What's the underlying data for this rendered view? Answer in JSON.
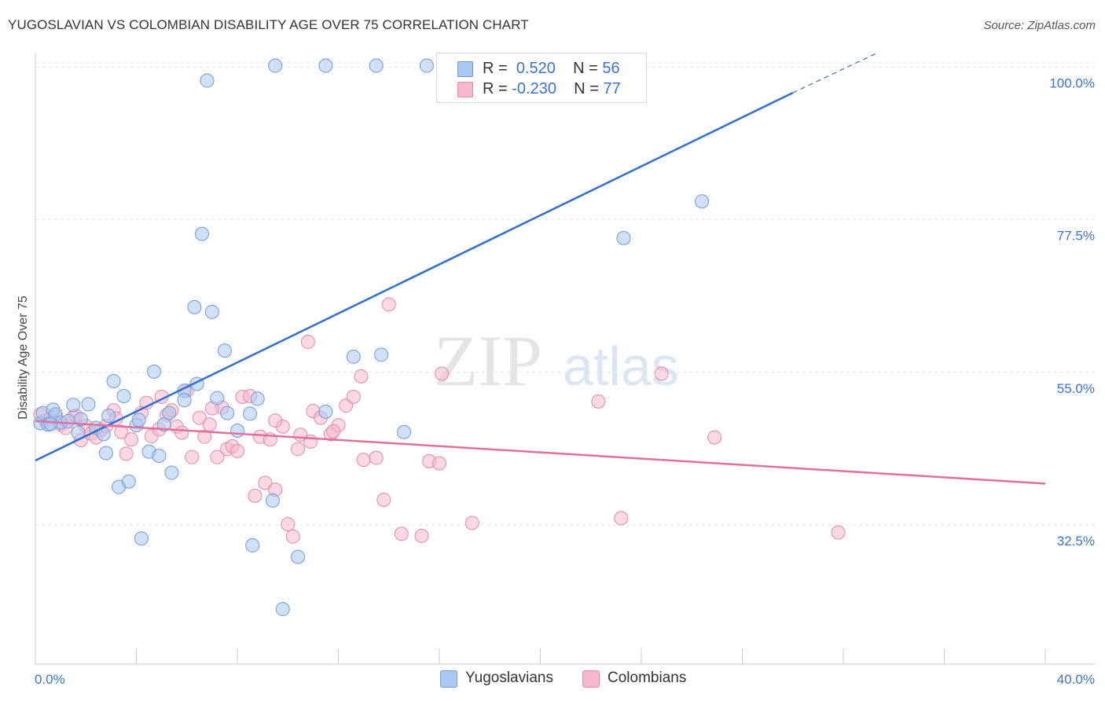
{
  "title": "YUGOSLAVIAN VS COLOMBIAN DISABILITY AGE OVER 75 CORRELATION CHART",
  "source": "Source: ZipAtlas.com",
  "watermark": {
    "zip": "ZIP",
    "atlas": "atlas"
  },
  "legend": {
    "rows": [
      {
        "r_label": "R =",
        "r_value": "0.520",
        "n_label": "N =",
        "n_value": "56",
        "color": "#a9c8f0"
      },
      {
        "r_label": "R =",
        "r_value": "-0.230",
        "n_label": "N =",
        "n_value": "77",
        "color": "#f7b8cc"
      }
    ]
  },
  "chart_data": {
    "type": "scatter",
    "title": "YUGOSLAVIAN VS COLOMBIAN DISABILITY AGE OVER 75 CORRELATION CHART",
    "xlabel": "",
    "ylabel": "Disability Age Over 75",
    "xlim": [
      0,
      40
    ],
    "ylim": [
      12,
      102
    ],
    "x_tick_labels": [
      "0.0%",
      "40.0%"
    ],
    "y_ticks": [
      32.5,
      55.0,
      77.5,
      100.0
    ],
    "y_tick_labels": [
      "32.5%",
      "55.0%",
      "77.5%",
      "100.0%"
    ],
    "grid": true,
    "legend_position": "bottom-center",
    "series": [
      {
        "name": "Yugoslavians",
        "color": "#a9c8f0",
        "stroke": "#6f9ad8",
        "trend": {
          "x": [
            0,
            30
          ],
          "y": [
            42.0,
            96.2
          ],
          "color": "#2f6fcf",
          "dashed_extension_to": [
            33.3,
            102
          ]
        },
        "points": [
          [
            0.2,
            47.5
          ],
          [
            0.3,
            49.0
          ],
          [
            0.5,
            47.3
          ],
          [
            0.7,
            49.5
          ],
          [
            0.8,
            48.8
          ],
          [
            1.0,
            47.6
          ],
          [
            1.3,
            47.8
          ],
          [
            1.5,
            50.2
          ],
          [
            1.7,
            46.1
          ],
          [
            1.8,
            48.1
          ],
          [
            2.1,
            50.3
          ],
          [
            2.4,
            46.8
          ],
          [
            2.7,
            45.9
          ],
          [
            2.8,
            43.1
          ],
          [
            2.9,
            48.6
          ],
          [
            3.1,
            53.7
          ],
          [
            3.3,
            38.1
          ],
          [
            3.5,
            51.5
          ],
          [
            3.7,
            38.9
          ],
          [
            4.0,
            47.2
          ],
          [
            4.1,
            48.0
          ],
          [
            4.2,
            30.5
          ],
          [
            4.5,
            43.3
          ],
          [
            4.7,
            55.1
          ],
          [
            4.9,
            42.7
          ],
          [
            5.1,
            47.3
          ],
          [
            5.3,
            49.0
          ],
          [
            5.4,
            40.2
          ],
          [
            5.9,
            52.3
          ],
          [
            5.9,
            50.9
          ],
          [
            6.3,
            64.6
          ],
          [
            6.4,
            53.3
          ],
          [
            6.6,
            75.4
          ],
          [
            6.8,
            98.0
          ],
          [
            7.0,
            63.9
          ],
          [
            7.2,
            51.2
          ],
          [
            7.5,
            58.2
          ],
          [
            7.6,
            49.0
          ],
          [
            8.0,
            46.4
          ],
          [
            8.5,
            48.9
          ],
          [
            8.6,
            29.5
          ],
          [
            8.8,
            51.1
          ],
          [
            9.4,
            36.1
          ],
          [
            9.5,
            100.2
          ],
          [
            9.8,
            20.1
          ],
          [
            10.4,
            27.8
          ],
          [
            11.5,
            49.2
          ],
          [
            11.5,
            100.2
          ],
          [
            12.6,
            57.3
          ],
          [
            13.5,
            100.2
          ],
          [
            13.7,
            57.6
          ],
          [
            14.6,
            46.2
          ],
          [
            15.5,
            100.2
          ],
          [
            23.3,
            74.8
          ],
          [
            26.4,
            80.2
          ],
          [
            0.6,
            47.4
          ]
        ]
      },
      {
        "name": "Colombians",
        "color": "#f7b8cc",
        "stroke": "#e58aa8",
        "trend": {
          "x": [
            0,
            40
          ],
          "y": [
            47.8,
            38.6
          ],
          "color": "#e0709a"
        },
        "points": [
          [
            0.2,
            48.8
          ],
          [
            0.4,
            47.9
          ],
          [
            0.6,
            48.3
          ],
          [
            0.8,
            48.4
          ],
          [
            1.0,
            47.3
          ],
          [
            1.2,
            46.8
          ],
          [
            1.5,
            48.4
          ],
          [
            1.6,
            48.6
          ],
          [
            1.8,
            45.0
          ],
          [
            2.0,
            47.1
          ],
          [
            2.2,
            46.0
          ],
          [
            2.4,
            45.4
          ],
          [
            2.6,
            46.5
          ],
          [
            2.8,
            47.1
          ],
          [
            3.1,
            49.4
          ],
          [
            3.2,
            48.2
          ],
          [
            3.4,
            46.2
          ],
          [
            3.6,
            43.0
          ],
          [
            3.8,
            45.1
          ],
          [
            4.2,
            49.0
          ],
          [
            4.4,
            50.5
          ],
          [
            4.6,
            45.6
          ],
          [
            5.0,
            51.4
          ],
          [
            5.2,
            48.7
          ],
          [
            5.4,
            49.4
          ],
          [
            5.6,
            47.0
          ],
          [
            5.8,
            46.1
          ],
          [
            6.0,
            52.3
          ],
          [
            6.2,
            42.5
          ],
          [
            6.5,
            48.3
          ],
          [
            6.7,
            45.5
          ],
          [
            6.9,
            47.3
          ],
          [
            7.2,
            42.5
          ],
          [
            7.4,
            49.8
          ],
          [
            7.6,
            43.7
          ],
          [
            7.8,
            44.1
          ],
          [
            8.0,
            43.4
          ],
          [
            8.2,
            51.4
          ],
          [
            8.5,
            51.5
          ],
          [
            8.9,
            45.5
          ],
          [
            9.1,
            38.7
          ],
          [
            9.3,
            45.1
          ],
          [
            9.5,
            37.7
          ],
          [
            9.8,
            47.0
          ],
          [
            10.0,
            32.6
          ],
          [
            10.2,
            30.8
          ],
          [
            10.4,
            43.7
          ],
          [
            10.5,
            45.8
          ],
          [
            10.8,
            59.5
          ],
          [
            11.0,
            49.3
          ],
          [
            11.3,
            48.3
          ],
          [
            11.7,
            45.9
          ],
          [
            12.0,
            47.2
          ],
          [
            12.3,
            50.1
          ],
          [
            12.6,
            51.4
          ],
          [
            12.9,
            54.4
          ],
          [
            13.0,
            42.1
          ],
          [
            13.5,
            42.4
          ],
          [
            13.8,
            36.2
          ],
          [
            14.5,
            31.2
          ],
          [
            15.3,
            30.9
          ],
          [
            15.6,
            41.9
          ],
          [
            16.0,
            41.6
          ],
          [
            16.1,
            54.8
          ],
          [
            17.3,
            32.8
          ],
          [
            22.3,
            50.7
          ],
          [
            23.2,
            33.5
          ],
          [
            24.8,
            54.8
          ],
          [
            26.9,
            45.4
          ],
          [
            31.8,
            31.4
          ],
          [
            9.5,
            47.9
          ],
          [
            8.7,
            36.8
          ],
          [
            10.9,
            44.8
          ],
          [
            11.8,
            46.3
          ],
          [
            14.0,
            65.0
          ],
          [
            4.9,
            46.6
          ],
          [
            7.0,
            49.7
          ]
        ]
      }
    ]
  }
}
